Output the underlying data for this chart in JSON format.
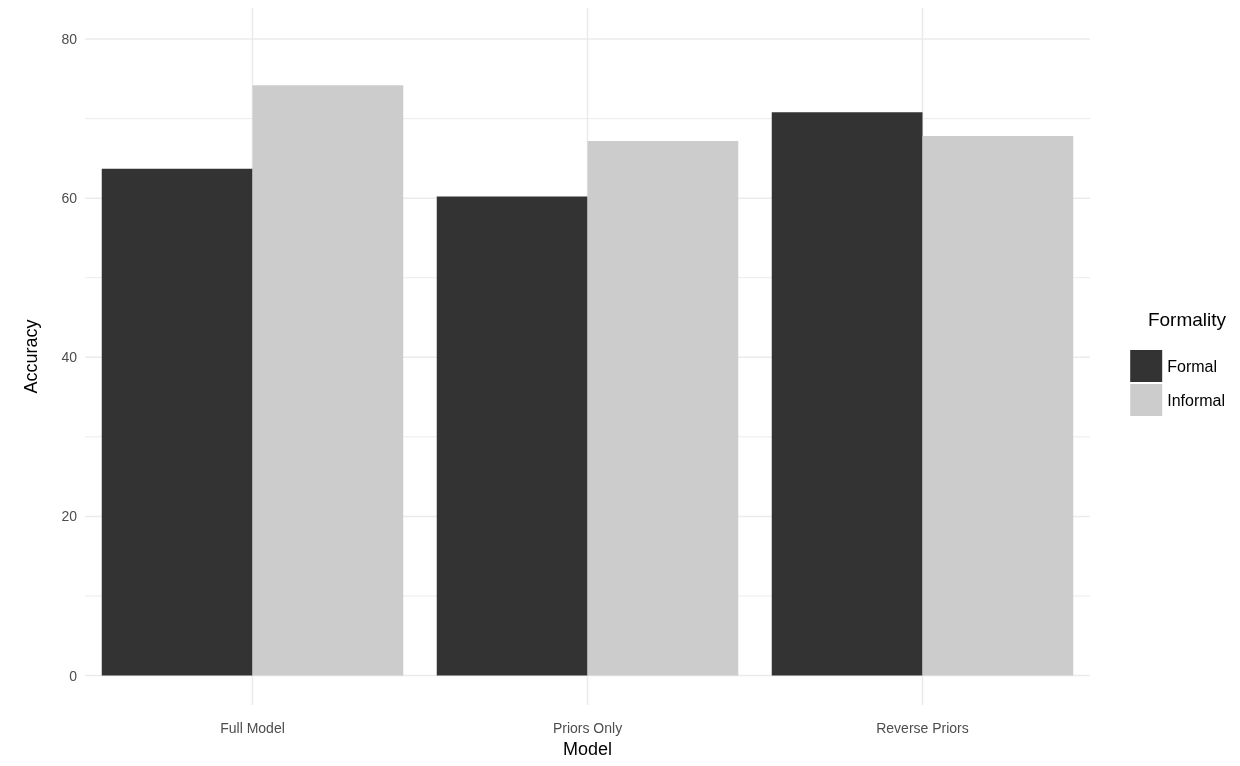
{
  "chart_data": {
    "type": "bar",
    "xlabel": "Model",
    "ylabel": "Accuracy",
    "legend_title": "Formality",
    "categories": [
      "Full Model",
      "Priors Only",
      "Reverse Priors"
    ],
    "series": [
      {
        "name": "Formal",
        "color": "#333333",
        "values": [
          63.7,
          60.2,
          70.8
        ]
      },
      {
        "name": "Informal",
        "color": "#cccccc",
        "values": [
          74.2,
          67.2,
          67.8
        ]
      }
    ],
    "ylim": [
      -3.7,
      83.9
    ],
    "yticks": [
      0,
      {
        "value": 10,
        "label": null
      },
      20,
      {
        "value": 30,
        "label": null
      },
      40,
      {
        "value": 50,
        "label": null
      },
      60,
      {
        "value": 70,
        "label": null
      },
      80
    ],
    "grid": true,
    "legend": "right"
  }
}
